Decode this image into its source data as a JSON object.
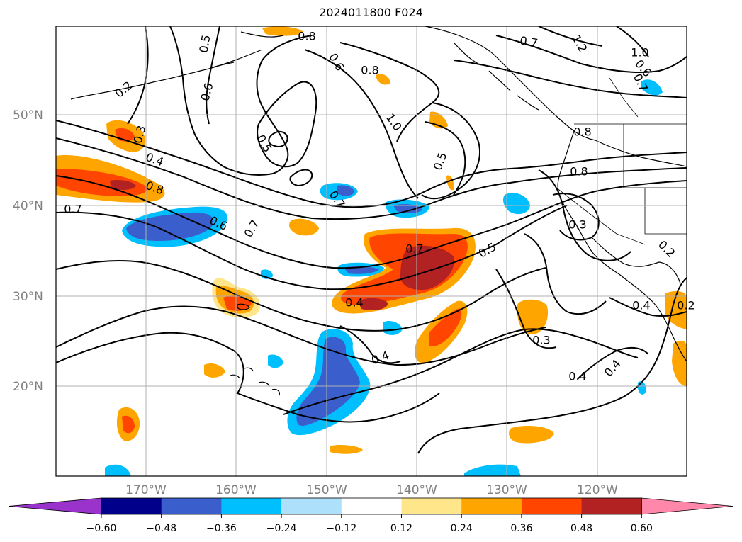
{
  "title": "2024011800 F024",
  "latitude_labels": [
    "50°N",
    "40°N",
    "30°N",
    "20°N"
  ],
  "longitude_labels": [
    "170°W",
    "160°W",
    "150°W",
    "140°W",
    "130°W",
    "120°W"
  ],
  "colorbar": {
    "colors": [
      "#9933cc",
      "#00008b",
      "#3a5fcd",
      "#00bfff",
      "#ade0fb",
      "#ffffff",
      "#ffe68a",
      "#ffa500",
      "#ff4500",
      "#b22222",
      "#ff88aa"
    ],
    "ticks": [
      "−0.60",
      "−0.48",
      "−0.36",
      "−0.24",
      "−0.12",
      "0.12",
      "0.24",
      "0.36",
      "0.48",
      "0.60"
    ]
  },
  "contour_labels": [
    "0.8",
    "0.5",
    "0.2",
    "0.6",
    "0.3",
    "0.4",
    "0.8",
    "0.7",
    "0.6",
    "0.7",
    "0.5",
    "0.7",
    "0.6",
    "0.8",
    "1.0",
    "0.5",
    "0.7",
    "0.4",
    "0.4",
    "0.5",
    "0.7",
    "1.2",
    "1.0",
    "0.6",
    "0.7",
    "0.8",
    "0.8",
    "0.3",
    "0.2",
    "0.4",
    "0.3",
    "0.4",
    "0.4",
    "0.2"
  ]
}
